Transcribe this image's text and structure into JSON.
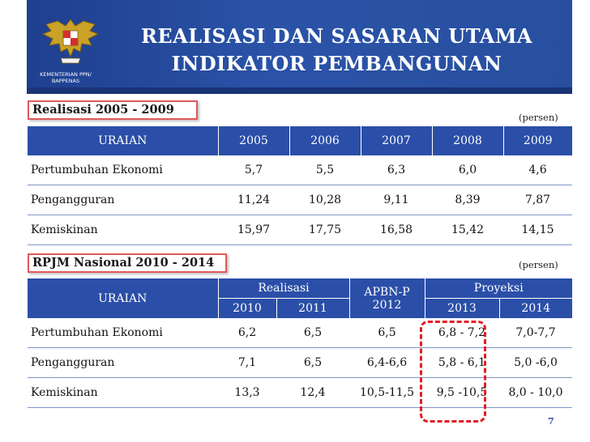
{
  "header": {
    "title_line1": "REALISASI DAN SASARAN UTAMA",
    "title_line2": "INDIKATOR PEMBANGUNAN",
    "ministry_line1": "KEMENTERIAN PPN/",
    "ministry_line2": "BAPPENAS"
  },
  "section1": {
    "label": "Realisasi 2005 - 2009",
    "unit": "(persen)",
    "headers": [
      "URAIAN",
      "2005",
      "2006",
      "2007",
      "2008",
      "2009"
    ],
    "rows": [
      [
        "Pertumbuhan Ekonomi",
        "5,7",
        "5,5",
        "6,3",
        "6,0",
        "4,6"
      ],
      [
        "Pengangguran",
        "11,24",
        "10,28",
        "9,11",
        "8,39",
        "7,87"
      ],
      [
        "Kemiskinan",
        "15,97",
        "17,75",
        "16,58",
        "15,42",
        "14,15"
      ]
    ]
  },
  "section2": {
    "label": "RPJM Nasional 2010 - 2014",
    "unit": "(persen)",
    "header_uraian": "URAIAN",
    "header_realisasi": "Realisasi",
    "header_apbnp_line1": "APBN-P",
    "header_apbnp_line2": "2012",
    "header_proyeksi": "Proyeksi",
    "years": [
      "2010",
      "2011",
      "2013",
      "2014"
    ],
    "rows": [
      [
        "Pertumbuhan Ekonomi",
        "6,2",
        "6,5",
        "6,5",
        "6,8 - 7,2",
        "7,0-7,7"
      ],
      [
        "Pengangguran",
        "7,1",
        "6,5",
        "6,4-6,6",
        "5,8 - 6,1",
        "5,0 -6,0"
      ],
      [
        "Kemiskinan",
        "13,3",
        "12,4",
        "10,5-11,5",
        "9,5 -10,5",
        "8,0 - 10,0"
      ]
    ]
  },
  "page_number": "7",
  "colors": {
    "header_blue": "#2a53a8",
    "table_header": "#2b4fa8",
    "label_border": "#e05a5a",
    "highlight": "#e01e26"
  }
}
